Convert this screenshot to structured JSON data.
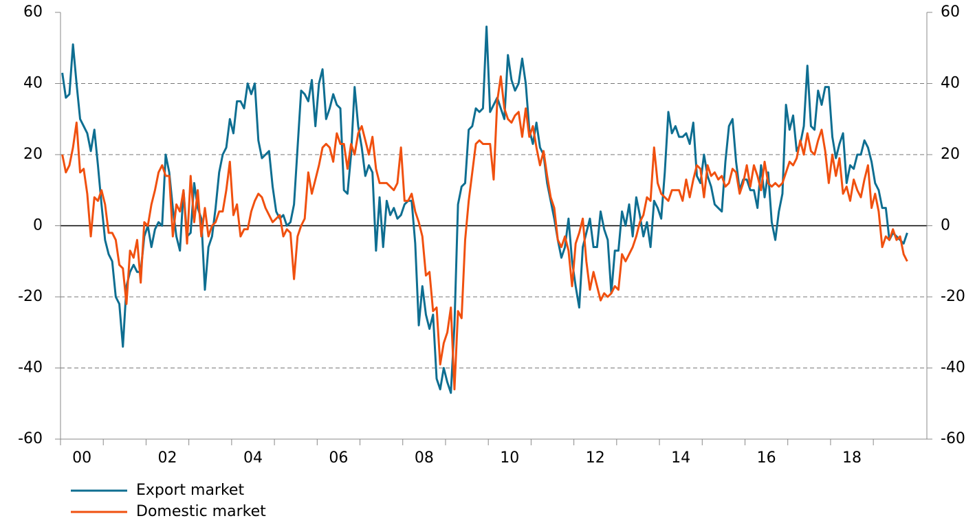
{
  "chart_data": {
    "type": "line",
    "categories": [
      null,
      null,
      null,
      null,
      null,
      null,
      "00",
      null,
      null,
      null,
      null,
      null,
      null,
      null,
      null,
      null,
      null,
      null,
      null,
      null,
      null,
      null,
      null,
      null,
      null,
      null,
      null,
      null,
      null,
      null,
      "02",
      null,
      null,
      null,
      null,
      null,
      null,
      null,
      null,
      null,
      null,
      null,
      null,
      null,
      null,
      null,
      null,
      null,
      null,
      null,
      null,
      null,
      null,
      null,
      "04",
      null,
      null,
      null,
      null,
      null,
      null,
      null,
      null,
      null,
      null,
      null,
      null,
      null,
      null,
      null,
      null,
      null,
      null,
      null,
      null,
      null,
      null,
      null,
      "06",
      null,
      null,
      null,
      null,
      null,
      null,
      null,
      null,
      null,
      null,
      null,
      null,
      null,
      null,
      null,
      null,
      null,
      null,
      null,
      null,
      null,
      null,
      null,
      "08",
      null,
      null,
      null,
      null,
      null,
      null,
      null,
      null,
      null,
      null,
      null,
      null,
      null,
      null,
      null,
      null,
      null,
      null,
      null,
      null,
      null,
      null,
      null,
      "10",
      null,
      null,
      null,
      null,
      null,
      null,
      null,
      null,
      null,
      null,
      null,
      null,
      null,
      null,
      null,
      null,
      null,
      null,
      null,
      null,
      null,
      null,
      null,
      "12",
      null,
      null,
      null,
      null,
      null,
      null,
      null,
      null,
      null,
      null,
      null,
      null,
      null,
      null,
      null,
      null,
      null,
      null,
      null,
      null,
      null,
      null,
      null,
      "14",
      null,
      null,
      null,
      null,
      null,
      null,
      null,
      null,
      null,
      null,
      null,
      null,
      null,
      null,
      null,
      null,
      null,
      null,
      null,
      null,
      null,
      null,
      null,
      "16",
      null,
      null,
      null,
      null,
      null,
      null,
      null,
      null,
      null,
      null,
      null,
      null,
      null,
      null,
      null,
      null,
      null,
      null,
      null,
      null,
      null,
      null,
      null,
      "18",
      null,
      null,
      null,
      null,
      null,
      null,
      null,
      null,
      null,
      null,
      null,
      null,
      null,
      null,
      null
    ],
    "series": [
      {
        "name": "Export market",
        "color": "#0e6e91",
        "values": [
          43,
          36,
          37,
          51,
          40,
          30,
          28,
          26,
          21,
          27,
          17,
          6,
          -4,
          -8,
          -10,
          -20,
          -22,
          -34,
          -17,
          -13,
          -11,
          -13,
          -13,
          -3,
          0,
          -6,
          -1,
          1,
          0,
          20,
          15,
          5,
          -3,
          -7,
          10,
          -3,
          -2,
          12,
          5,
          2,
          -18,
          -6,
          -3,
          5,
          15,
          20,
          22,
          30,
          26,
          35,
          35,
          33,
          40,
          37,
          40,
          24,
          19,
          20,
          21,
          11,
          4,
          2,
          3,
          0,
          1,
          6,
          22,
          38,
          37,
          35,
          41,
          28,
          40,
          44,
          30,
          33,
          37,
          34,
          33,
          10,
          9,
          20,
          39,
          28,
          22,
          14,
          17,
          15,
          -7,
          8,
          -6,
          7,
          3,
          5,
          2,
          3,
          6,
          7,
          7,
          -5,
          -28,
          -17,
          -25,
          -29,
          -25,
          -43,
          -46,
          -40,
          -44,
          -47,
          -28,
          6,
          11,
          12,
          27,
          28,
          33,
          32,
          33,
          56,
          32,
          34,
          36,
          33,
          30,
          48,
          41,
          38,
          40,
          47,
          40,
          27,
          23,
          29,
          22,
          20,
          12,
          7,
          2,
          -4,
          -9,
          -6,
          2,
          -10,
          -17,
          -23,
          -6,
          -2,
          2,
          -6,
          -6,
          4,
          -1,
          -4,
          -19,
          -7,
          -7,
          4,
          0,
          6,
          -3,
          8,
          3,
          -3,
          1,
          -6,
          7,
          5,
          2,
          15,
          32,
          26,
          28,
          25,
          25,
          26,
          23,
          29,
          14,
          12,
          20,
          14,
          11,
          6,
          5,
          4,
          18,
          28,
          30,
          18,
          10,
          13,
          13,
          10,
          10,
          5,
          17,
          8,
          15,
          1,
          -4,
          4,
          9,
          34,
          27,
          31,
          21,
          23,
          28,
          45,
          28,
          27,
          38,
          34,
          39,
          39,
          25,
          19,
          23,
          26,
          12,
          17,
          16,
          20,
          20,
          24,
          22,
          18,
          12,
          10,
          5,
          5,
          -4,
          -2,
          -3,
          -4,
          -5,
          -2
        ]
      },
      {
        "name": "Domestic market",
        "color": "#f0500f",
        "values": [
          20,
          15,
          17,
          22,
          29,
          15,
          16,
          9,
          -3,
          8,
          7,
          10,
          6,
          -2,
          -2,
          -4,
          -11,
          -12,
          -22,
          -7,
          -9,
          -4,
          -16,
          1,
          0,
          6,
          10,
          15,
          17,
          14,
          14,
          -3,
          6,
          4,
          10,
          -5,
          14,
          1,
          10,
          -3,
          5,
          -3,
          0,
          1,
          4,
          4,
          10,
          18,
          3,
          6,
          -3,
          -1,
          -1,
          4,
          7,
          9,
          8,
          5,
          3,
          1,
          2,
          3,
          -3,
          -1,
          -2,
          -15,
          -3,
          0,
          2,
          15,
          9,
          13,
          17,
          22,
          23,
          22,
          18,
          26,
          23,
          23,
          16,
          23,
          20,
          26,
          28,
          24,
          20,
          25,
          16,
          12,
          12,
          12,
          11,
          10,
          12,
          22,
          7,
          7,
          9,
          4,
          1,
          -3,
          -14,
          -13,
          -24,
          -23,
          -39,
          -33,
          -30,
          -23,
          -46,
          -24,
          -26,
          -4,
          7,
          15,
          23,
          24,
          23,
          23,
          23,
          13,
          35,
          42,
          33,
          30,
          29,
          31,
          32,
          25,
          33,
          25,
          28,
          22,
          17,
          21,
          14,
          8,
          5,
          -4,
          -6,
          -3,
          -7,
          -17,
          -5,
          -2,
          2,
          -10,
          -18,
          -13,
          -17,
          -21,
          -19,
          -20,
          -19,
          -17,
          -18,
          -8,
          -10,
          -8,
          -6,
          -3,
          1,
          3,
          8,
          7,
          22,
          12,
          9,
          8,
          7,
          10,
          10,
          10,
          7,
          13,
          8,
          13,
          17,
          16,
          8,
          17,
          14,
          15,
          13,
          14,
          11,
          12,
          16,
          15,
          9,
          12,
          17,
          11,
          17,
          14,
          10,
          18,
          12,
          11,
          12,
          11,
          12,
          15,
          18,
          17,
          19,
          24,
          20,
          26,
          21,
          20,
          24,
          27,
          21,
          12,
          20,
          14,
          19,
          9,
          11,
          7,
          13,
          10,
          8,
          13,
          17,
          5,
          9,
          4,
          -6,
          -3,
          -4,
          -1,
          -4,
          -3,
          -8,
          -10
        ]
      }
    ],
    "ylim": [
      -60,
      60
    ],
    "yticks": [
      -60,
      -40,
      -20,
      0,
      20,
      40,
      60
    ],
    "grid": true
  }
}
